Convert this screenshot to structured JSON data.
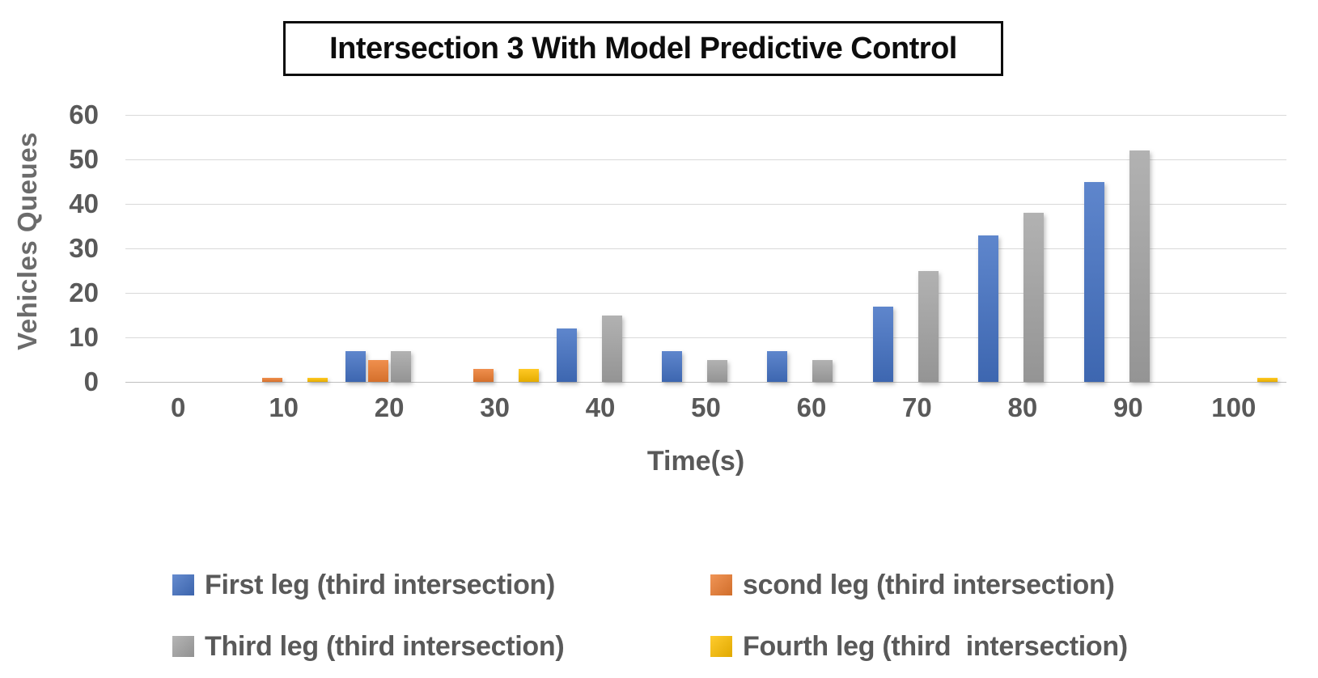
{
  "chart_data": {
    "type": "bar",
    "title": "Intersection 3 With Model Predictive Control",
    "xlabel": "Time(s)",
    "ylabel": "Vehicles Queues",
    "categories": [
      0,
      10,
      20,
      30,
      40,
      50,
      60,
      70,
      80,
      90,
      100
    ],
    "y_ticks": [
      0,
      10,
      20,
      30,
      40,
      50,
      60
    ],
    "ylim": [
      0,
      60
    ],
    "grid": "horizontal",
    "legend_position": "bottom",
    "series": [
      {
        "key": "first-leg",
        "name": "First leg (third intersection)",
        "color": "#4472C4",
        "values": [
          0,
          0,
          7,
          0,
          12,
          7,
          7,
          17,
          33,
          45,
          0
        ]
      },
      {
        "key": "scond-leg",
        "name": "scond leg (third intersection)",
        "color": "#ED7D31",
        "values": [
          0,
          1,
          5,
          3,
          0,
          0,
          0,
          0,
          0,
          0,
          0
        ]
      },
      {
        "key": "third-leg",
        "name": "Third leg (third intersection)",
        "color": "#A5A5A5",
        "values": [
          0,
          0,
          7,
          0,
          15,
          5,
          5,
          25,
          38,
          52,
          0
        ]
      },
      {
        "key": "fourth-leg",
        "name": "Fourth leg (third  intersection)",
        "color": "#FFC000",
        "values": [
          0,
          1,
          0,
          3,
          0,
          0,
          0,
          0,
          0,
          0,
          1
        ]
      }
    ]
  }
}
